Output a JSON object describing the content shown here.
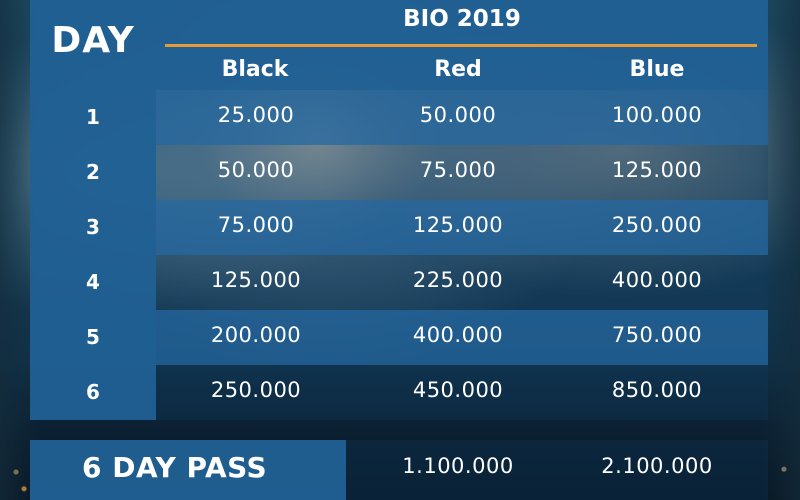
{
  "table": {
    "day_header": "DAY",
    "title": "BIO 2019",
    "tiers": [
      "Black",
      "Red",
      "Blue"
    ],
    "rows": [
      {
        "day": "1",
        "prices": [
          "25.000",
          "50.000",
          "100.000"
        ]
      },
      {
        "day": "2",
        "prices": [
          "50.000",
          "75.000",
          "125.000"
        ]
      },
      {
        "day": "3",
        "prices": [
          "75.000",
          "125.000",
          "250.000"
        ]
      },
      {
        "day": "4",
        "prices": [
          "125.000",
          "225.000",
          "400.000"
        ]
      },
      {
        "day": "5",
        "prices": [
          "200.000",
          "400.000",
          "750.000"
        ]
      },
      {
        "day": "6",
        "prices": [
          "250.000",
          "450.000",
          "850.000"
        ]
      }
    ],
    "pass": {
      "label": "6 DAY PASS",
      "red": "1.100.000",
      "blue": "2.100.000"
    }
  },
  "colors": {
    "panel_blue": "#2060a6",
    "accent_orange": "#e59a35",
    "text": "#ffffff"
  }
}
